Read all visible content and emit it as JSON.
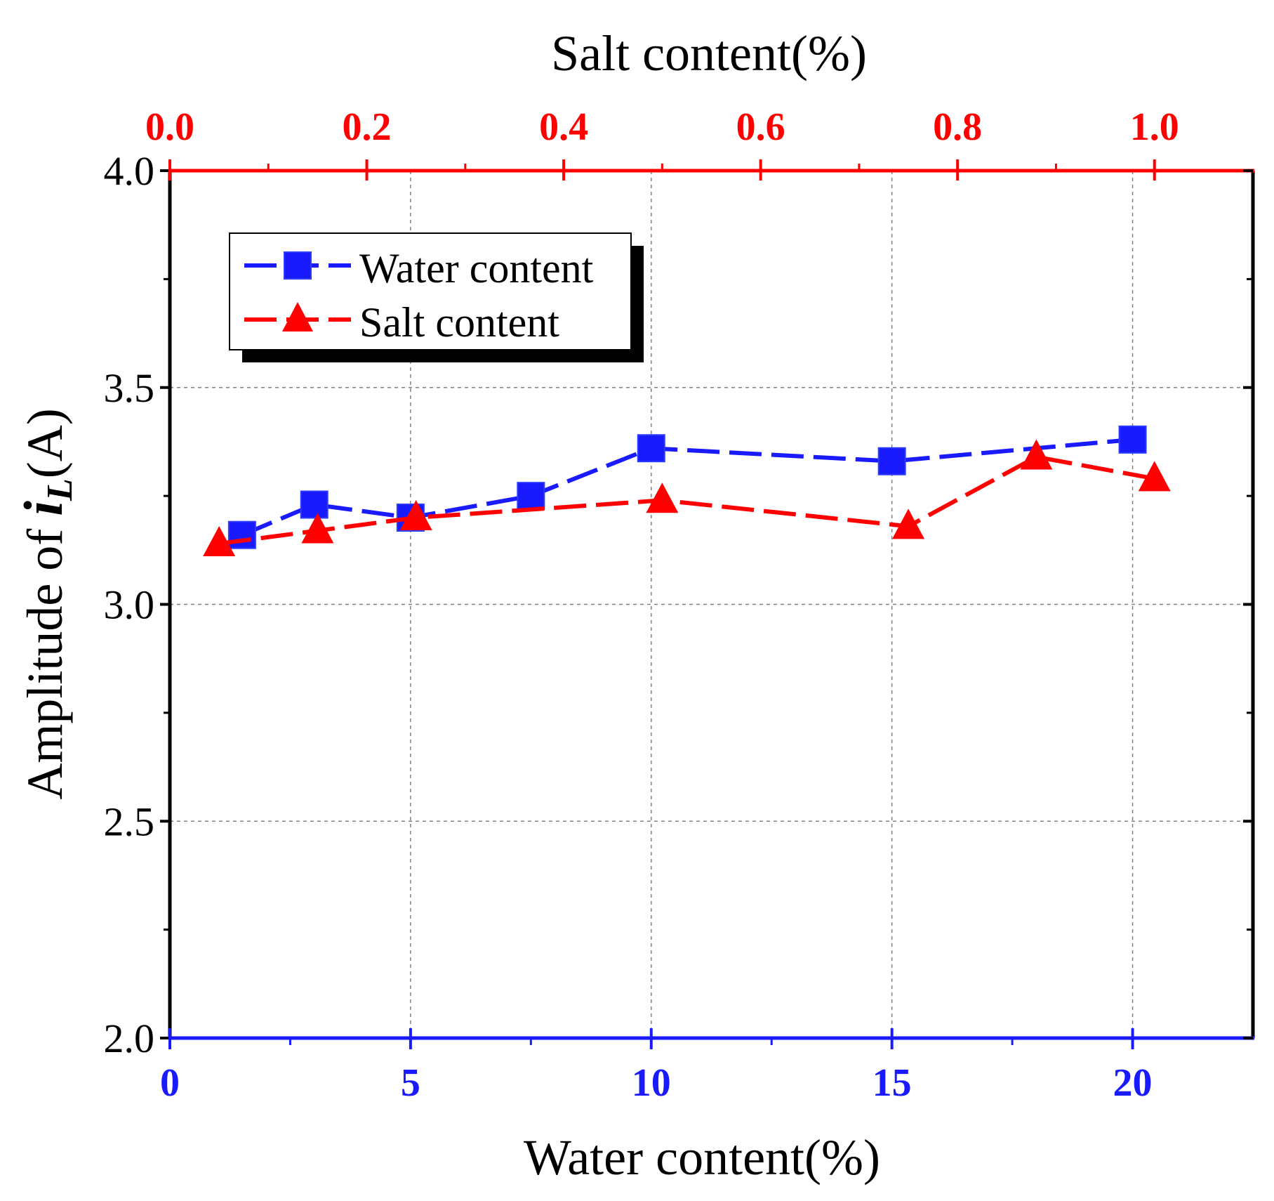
{
  "chart_data": {
    "type": "line",
    "title_top_axis": "Salt content(%)",
    "xlabel": "Water content(%)",
    "ylabel_prefix": "Amplitude of ",
    "ylabel_symbol": "i",
    "ylabel_subscript": "L",
    "ylabel_suffix": "(A)",
    "ylim": [
      2.0,
      4.0
    ],
    "yticks": [
      2.0,
      2.5,
      3.0,
      3.5,
      4.0
    ],
    "ytick_labels": [
      "2.0",
      "2.5",
      "3.0",
      "3.5",
      "4.0"
    ],
    "x_bottom": {
      "range": [
        0,
        22.5
      ],
      "ticks": [
        0,
        5,
        10,
        15,
        20
      ],
      "tick_labels": [
        "0",
        "5",
        "10",
        "15",
        "20"
      ],
      "color": "#1a1aff"
    },
    "x_top": {
      "range": [
        0,
        1.1
      ],
      "ticks": [
        0.0,
        0.2,
        0.4,
        0.6,
        0.8,
        1.0
      ],
      "tick_labels": [
        "0.0",
        "0.2",
        "0.4",
        "0.6",
        "0.8",
        "1.0"
      ],
      "color": "#ff0000"
    },
    "grid": true,
    "legend_position": "top-left",
    "series": [
      {
        "name": "Water content",
        "axis": "bottom",
        "marker": "square",
        "color": "#1a1aff",
        "x": [
          1.5,
          3,
          5,
          7.5,
          10,
          15,
          20
        ],
        "y": [
          3.16,
          3.23,
          3.2,
          3.25,
          3.36,
          3.33,
          3.38
        ]
      },
      {
        "name": "Salt content",
        "axis": "top",
        "marker": "triangle",
        "color": "#ff0000",
        "x": [
          0.05,
          0.15,
          0.25,
          0.5,
          0.75,
          0.88,
          1.0
        ],
        "y": [
          3.14,
          3.17,
          3.2,
          3.24,
          3.18,
          3.34,
          3.29
        ]
      }
    ]
  }
}
